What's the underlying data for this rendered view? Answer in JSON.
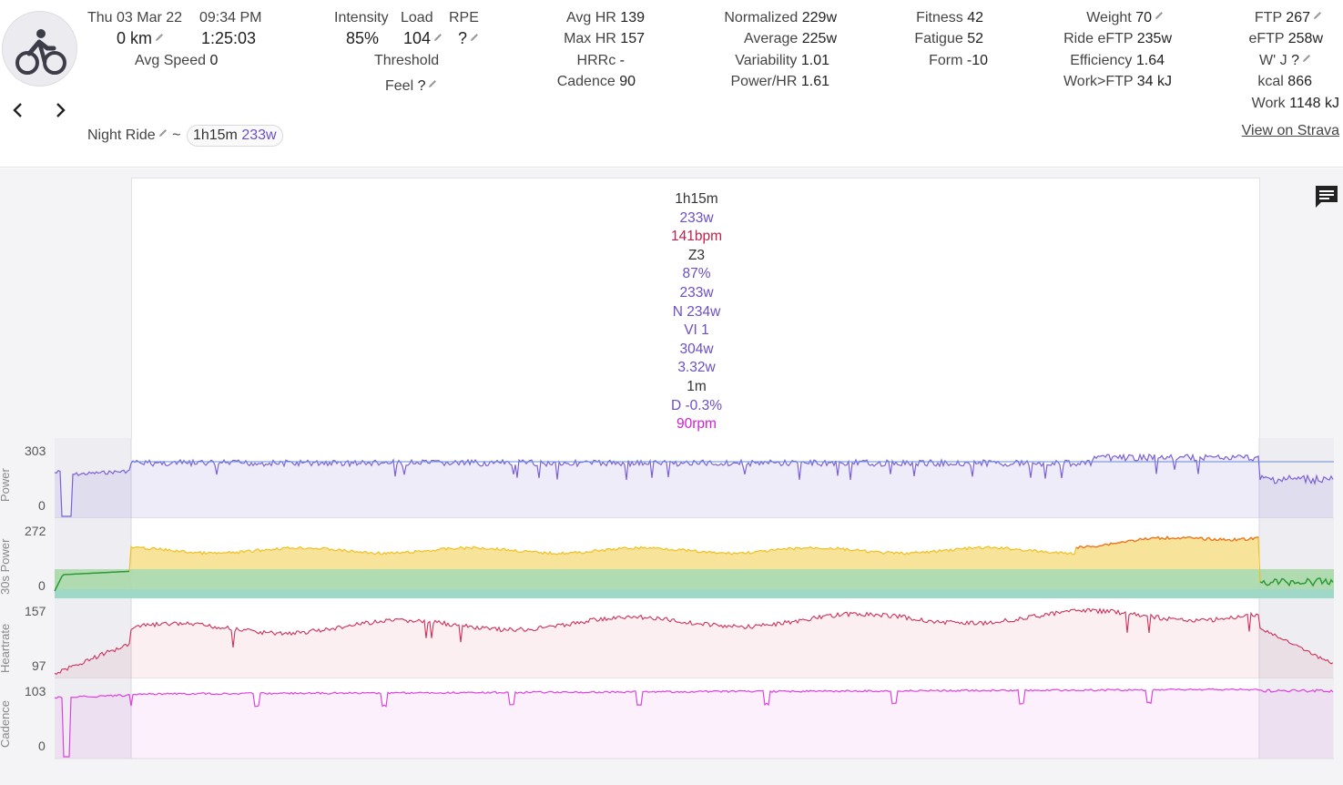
{
  "activity": {
    "date": "Thu 03 Mar 22",
    "time": "09:34 PM",
    "distance": "0 km",
    "duration": "1:25:03",
    "avg_speed_label": "Avg Speed",
    "avg_speed_value": "0",
    "name": "Night Ride",
    "tilde": "~",
    "chip_duration": "1h15m",
    "chip_power": "233w",
    "strava_link": "View on Strava"
  },
  "stats": {
    "intensity_label": "Intensity",
    "intensity_value": "85%",
    "load_label": "Load",
    "load_value": "104",
    "rpe_label": "RPE",
    "rpe_value": "?",
    "threshold_label": "Threshold",
    "feel_label": "Feel",
    "feel_value": "?",
    "avg_hr_label": "Avg HR",
    "avg_hr_value": "139",
    "max_hr_label": "Max HR",
    "max_hr_value": "157",
    "hrrc_label": "HRRc",
    "hrrc_value": "-",
    "cadence_label": "Cadence",
    "cadence_value": "90",
    "normalized_label": "Normalized",
    "normalized_value": "229w",
    "average_label": "Average",
    "average_value": "225w",
    "variability_label": "Variability",
    "variability_value": "1.01",
    "power_hr_label": "Power/HR",
    "power_hr_value": "1.61",
    "fitness_label": "Fitness",
    "fitness_value": "42",
    "fatigue_label": "Fatigue",
    "fatigue_value": "52",
    "form_label": "Form",
    "form_value": "-10",
    "weight_label": "Weight",
    "weight_value": "70",
    "ride_eftp_label": "Ride eFTP",
    "ride_eftp_value": "235w",
    "efficiency_label": "Efficiency",
    "efficiency_value": "1.64",
    "work_ftp_label": "Work>FTP",
    "work_ftp_value": "34 kJ",
    "ftp_label": "FTP",
    "ftp_value": "267",
    "eftp_label": "eFTP",
    "eftp_value": "258w",
    "wj_label": "W' J",
    "wj_value": "?",
    "kcal_label": "kcal",
    "kcal_value": "866",
    "work_label": "Work",
    "work_value": "1148 kJ"
  },
  "selection": {
    "lines": [
      {
        "text": "1h15m",
        "color": "#333333"
      },
      {
        "text": "233w",
        "color": "#6a4fc8"
      },
      {
        "text": "141bpm",
        "color": "#c0204a"
      },
      {
        "text": "Z3",
        "color": "#333333"
      },
      {
        "text": "87%",
        "color": "#6a4fc8"
      },
      {
        "text": "233w",
        "color": "#6a4fc8"
      },
      {
        "text": "N 234w",
        "color": "#6a4fc8"
      },
      {
        "text": "VI 1",
        "color": "#6a4fc8"
      },
      {
        "text": "304w",
        "color": "#6a4fc8"
      },
      {
        "text": "3.32w",
        "color": "#6a4fc8"
      },
      {
        "text": "1m",
        "color": "#333333"
      },
      {
        "text": "D -0.3%",
        "color": "#6a4fc8"
      },
      {
        "text": "90rpm",
        "color": "#d020d0"
      }
    ]
  },
  "charts": {
    "power": {
      "label": "Power",
      "ymax": "303",
      "ymin": "0"
    },
    "power30": {
      "label": "30s Power",
      "ymax": "272",
      "ymin": "0"
    },
    "heartrate": {
      "label": "Heartrate",
      "ymax": "157",
      "ymin": "97"
    },
    "cadence": {
      "label": "Cadence",
      "ymax": "103",
      "ymin": "0"
    }
  },
  "colors": {
    "power": "#7b61d8",
    "heartrate": "#d0305a",
    "cadence": "#e040e0",
    "zone_green": "#2a9a3a",
    "zone_yellow": "#f0c020",
    "zone_orange": "#f07020"
  },
  "icons": [
    "bike-icon",
    "pencil-icon",
    "chevron-left-icon",
    "chevron-right-icon",
    "comment-icon"
  ]
}
